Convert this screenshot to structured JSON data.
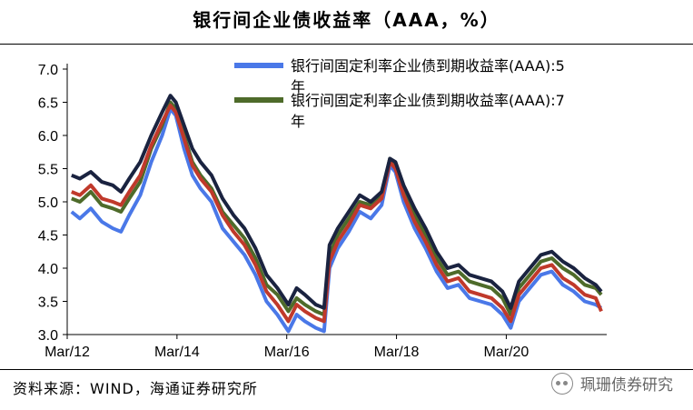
{
  "title": "银行间企业债收益率（AAA，%）",
  "source": "资料来源：WIND，海通证券研究所",
  "watermark": "珮珊债券研究",
  "chart_data": {
    "type": "line",
    "title": "银行间企业债收益率（AAA，%）",
    "xlabel": "",
    "ylabel": "",
    "ylim": [
      3.0,
      7.0
    ],
    "yticks": [
      "7.0",
      "6.5",
      "6.0",
      "5.5",
      "5.0",
      "4.5",
      "4.0",
      "3.5",
      "3.0"
    ],
    "xticks": [
      {
        "label": "Mar/12",
        "t": 2012.17
      },
      {
        "label": "Mar/14",
        "t": 2014.17
      },
      {
        "label": "Mar/16",
        "t": 2016.17
      },
      {
        "label": "Mar/18",
        "t": 2018.17
      },
      {
        "label": "Mar/20",
        "t": 2020.17
      }
    ],
    "xlim": [
      2012.17,
      2022.0
    ],
    "legend_position": "top-right",
    "grid": false,
    "series": [
      {
        "name": "银行间固定利率企业债到期收益率(AAA):5年",
        "color": "#4a78e8",
        "points": [
          [
            2012.25,
            4.85
          ],
          [
            2012.4,
            4.75
          ],
          [
            2012.6,
            4.9
          ],
          [
            2012.8,
            4.7
          ],
          [
            2013.0,
            4.6
          ],
          [
            2013.15,
            4.55
          ],
          [
            2013.3,
            4.8
          ],
          [
            2013.5,
            5.1
          ],
          [
            2013.7,
            5.6
          ],
          [
            2013.9,
            6.0
          ],
          [
            2014.05,
            6.4
          ],
          [
            2014.15,
            6.3
          ],
          [
            2014.3,
            5.8
          ],
          [
            2014.45,
            5.4
          ],
          [
            2014.6,
            5.2
          ],
          [
            2014.8,
            5.0
          ],
          [
            2015.0,
            4.6
          ],
          [
            2015.2,
            4.4
          ],
          [
            2015.4,
            4.2
          ],
          [
            2015.6,
            3.9
          ],
          [
            2015.8,
            3.5
          ],
          [
            2016.0,
            3.3
          ],
          [
            2016.2,
            3.05
          ],
          [
            2016.35,
            3.3
          ],
          [
            2016.5,
            3.2
          ],
          [
            2016.7,
            3.1
          ],
          [
            2016.85,
            3.05
          ],
          [
            2016.95,
            4.0
          ],
          [
            2017.1,
            4.3
          ],
          [
            2017.3,
            4.55
          ],
          [
            2017.5,
            4.85
          ],
          [
            2017.7,
            4.75
          ],
          [
            2017.9,
            4.95
          ],
          [
            2018.05,
            5.55
          ],
          [
            2018.15,
            5.45
          ],
          [
            2018.3,
            5.0
          ],
          [
            2018.5,
            4.6
          ],
          [
            2018.7,
            4.3
          ],
          [
            2018.9,
            3.95
          ],
          [
            2019.1,
            3.7
          ],
          [
            2019.3,
            3.75
          ],
          [
            2019.5,
            3.55
          ],
          [
            2019.7,
            3.5
          ],
          [
            2019.9,
            3.45
          ],
          [
            2020.1,
            3.3
          ],
          [
            2020.25,
            3.1
          ],
          [
            2020.4,
            3.5
          ],
          [
            2020.6,
            3.7
          ],
          [
            2020.8,
            3.9
          ],
          [
            2021.0,
            3.95
          ],
          [
            2021.2,
            3.75
          ],
          [
            2021.4,
            3.65
          ],
          [
            2021.6,
            3.5
          ],
          [
            2021.8,
            3.45
          ],
          [
            2021.9,
            3.4
          ]
        ]
      },
      {
        "name": "银行间固定利率企业债到期收益率(AAA):7年",
        "color": "#4e6b2a",
        "points": [
          [
            2012.25,
            5.05
          ],
          [
            2012.4,
            5.0
          ],
          [
            2012.6,
            5.15
          ],
          [
            2012.8,
            4.95
          ],
          [
            2013.0,
            4.9
          ],
          [
            2013.15,
            4.85
          ],
          [
            2013.3,
            5.05
          ],
          [
            2013.5,
            5.3
          ],
          [
            2013.7,
            5.8
          ],
          [
            2013.9,
            6.15
          ],
          [
            2014.05,
            6.5
          ],
          [
            2014.15,
            6.4
          ],
          [
            2014.3,
            6.0
          ],
          [
            2014.45,
            5.6
          ],
          [
            2014.6,
            5.4
          ],
          [
            2014.8,
            5.2
          ],
          [
            2015.0,
            4.85
          ],
          [
            2015.2,
            4.65
          ],
          [
            2015.4,
            4.45
          ],
          [
            2015.6,
            4.15
          ],
          [
            2015.8,
            3.75
          ],
          [
            2016.0,
            3.6
          ],
          [
            2016.2,
            3.35
          ],
          [
            2016.35,
            3.55
          ],
          [
            2016.5,
            3.45
          ],
          [
            2016.7,
            3.35
          ],
          [
            2016.85,
            3.3
          ],
          [
            2016.95,
            4.2
          ],
          [
            2017.1,
            4.5
          ],
          [
            2017.3,
            4.75
          ],
          [
            2017.5,
            5.0
          ],
          [
            2017.7,
            4.95
          ],
          [
            2017.9,
            5.1
          ],
          [
            2018.05,
            5.65
          ],
          [
            2018.15,
            5.55
          ],
          [
            2018.3,
            5.15
          ],
          [
            2018.5,
            4.8
          ],
          [
            2018.7,
            4.5
          ],
          [
            2018.9,
            4.15
          ],
          [
            2019.1,
            3.9
          ],
          [
            2019.3,
            3.95
          ],
          [
            2019.5,
            3.8
          ],
          [
            2019.7,
            3.75
          ],
          [
            2019.9,
            3.7
          ],
          [
            2020.1,
            3.55
          ],
          [
            2020.25,
            3.3
          ],
          [
            2020.4,
            3.7
          ],
          [
            2020.6,
            3.9
          ],
          [
            2020.8,
            4.1
          ],
          [
            2021.0,
            4.15
          ],
          [
            2021.2,
            4.0
          ],
          [
            2021.4,
            3.9
          ],
          [
            2021.6,
            3.75
          ],
          [
            2021.8,
            3.7
          ],
          [
            2021.9,
            3.6
          ]
        ]
      },
      {
        "name": "",
        "color": "#c0392b",
        "points": [
          [
            2012.25,
            5.15
          ],
          [
            2012.4,
            5.1
          ],
          [
            2012.6,
            5.25
          ],
          [
            2012.8,
            5.05
          ],
          [
            2013.0,
            5.0
          ],
          [
            2013.15,
            4.95
          ],
          [
            2013.3,
            5.15
          ],
          [
            2013.5,
            5.4
          ],
          [
            2013.7,
            5.85
          ],
          [
            2013.9,
            6.2
          ],
          [
            2014.05,
            6.45
          ],
          [
            2014.15,
            6.35
          ],
          [
            2014.3,
            5.95
          ],
          [
            2014.45,
            5.55
          ],
          [
            2014.6,
            5.35
          ],
          [
            2014.8,
            5.15
          ],
          [
            2015.0,
            4.8
          ],
          [
            2015.2,
            4.55
          ],
          [
            2015.4,
            4.35
          ],
          [
            2015.6,
            4.05
          ],
          [
            2015.8,
            3.65
          ],
          [
            2016.0,
            3.45
          ],
          [
            2016.2,
            3.2
          ],
          [
            2016.35,
            3.45
          ],
          [
            2016.5,
            3.35
          ],
          [
            2016.7,
            3.25
          ],
          [
            2016.85,
            3.2
          ],
          [
            2016.95,
            4.1
          ],
          [
            2017.1,
            4.4
          ],
          [
            2017.3,
            4.65
          ],
          [
            2017.5,
            4.95
          ],
          [
            2017.7,
            4.9
          ],
          [
            2017.9,
            5.05
          ],
          [
            2018.05,
            5.6
          ],
          [
            2018.15,
            5.5
          ],
          [
            2018.3,
            5.1
          ],
          [
            2018.5,
            4.7
          ],
          [
            2018.7,
            4.4
          ],
          [
            2018.9,
            4.05
          ],
          [
            2019.1,
            3.8
          ],
          [
            2019.3,
            3.85
          ],
          [
            2019.5,
            3.65
          ],
          [
            2019.7,
            3.6
          ],
          [
            2019.9,
            3.55
          ],
          [
            2020.1,
            3.4
          ],
          [
            2020.25,
            3.2
          ],
          [
            2020.4,
            3.6
          ],
          [
            2020.6,
            3.8
          ],
          [
            2020.8,
            4.0
          ],
          [
            2021.0,
            4.05
          ],
          [
            2021.2,
            3.85
          ],
          [
            2021.4,
            3.75
          ],
          [
            2021.6,
            3.6
          ],
          [
            2021.8,
            3.55
          ],
          [
            2021.9,
            3.35
          ]
        ]
      },
      {
        "name": "",
        "color": "#1a2340",
        "points": [
          [
            2012.25,
            5.4
          ],
          [
            2012.4,
            5.35
          ],
          [
            2012.6,
            5.45
          ],
          [
            2012.8,
            5.3
          ],
          [
            2013.0,
            5.25
          ],
          [
            2013.15,
            5.15
          ],
          [
            2013.3,
            5.35
          ],
          [
            2013.5,
            5.6
          ],
          [
            2013.7,
            6.0
          ],
          [
            2013.9,
            6.35
          ],
          [
            2014.05,
            6.6
          ],
          [
            2014.15,
            6.5
          ],
          [
            2014.3,
            6.15
          ],
          [
            2014.45,
            5.8
          ],
          [
            2014.6,
            5.6
          ],
          [
            2014.8,
            5.4
          ],
          [
            2015.0,
            5.05
          ],
          [
            2015.2,
            4.8
          ],
          [
            2015.4,
            4.6
          ],
          [
            2015.6,
            4.3
          ],
          [
            2015.8,
            3.9
          ],
          [
            2016.0,
            3.7
          ],
          [
            2016.2,
            3.45
          ],
          [
            2016.35,
            3.7
          ],
          [
            2016.5,
            3.6
          ],
          [
            2016.7,
            3.45
          ],
          [
            2016.85,
            3.4
          ],
          [
            2016.95,
            4.35
          ],
          [
            2017.1,
            4.6
          ],
          [
            2017.3,
            4.85
          ],
          [
            2017.5,
            5.1
          ],
          [
            2017.7,
            5.0
          ],
          [
            2017.9,
            5.15
          ],
          [
            2018.05,
            5.65
          ],
          [
            2018.15,
            5.6
          ],
          [
            2018.3,
            5.25
          ],
          [
            2018.5,
            4.9
          ],
          [
            2018.7,
            4.6
          ],
          [
            2018.9,
            4.25
          ],
          [
            2019.1,
            4.0
          ],
          [
            2019.3,
            4.05
          ],
          [
            2019.5,
            3.9
          ],
          [
            2019.7,
            3.85
          ],
          [
            2019.9,
            3.8
          ],
          [
            2020.1,
            3.65
          ],
          [
            2020.25,
            3.4
          ],
          [
            2020.4,
            3.8
          ],
          [
            2020.6,
            4.0
          ],
          [
            2020.8,
            4.2
          ],
          [
            2021.0,
            4.25
          ],
          [
            2021.2,
            4.1
          ],
          [
            2021.4,
            4.0
          ],
          [
            2021.6,
            3.85
          ],
          [
            2021.8,
            3.75
          ],
          [
            2021.9,
            3.65
          ]
        ]
      }
    ]
  }
}
